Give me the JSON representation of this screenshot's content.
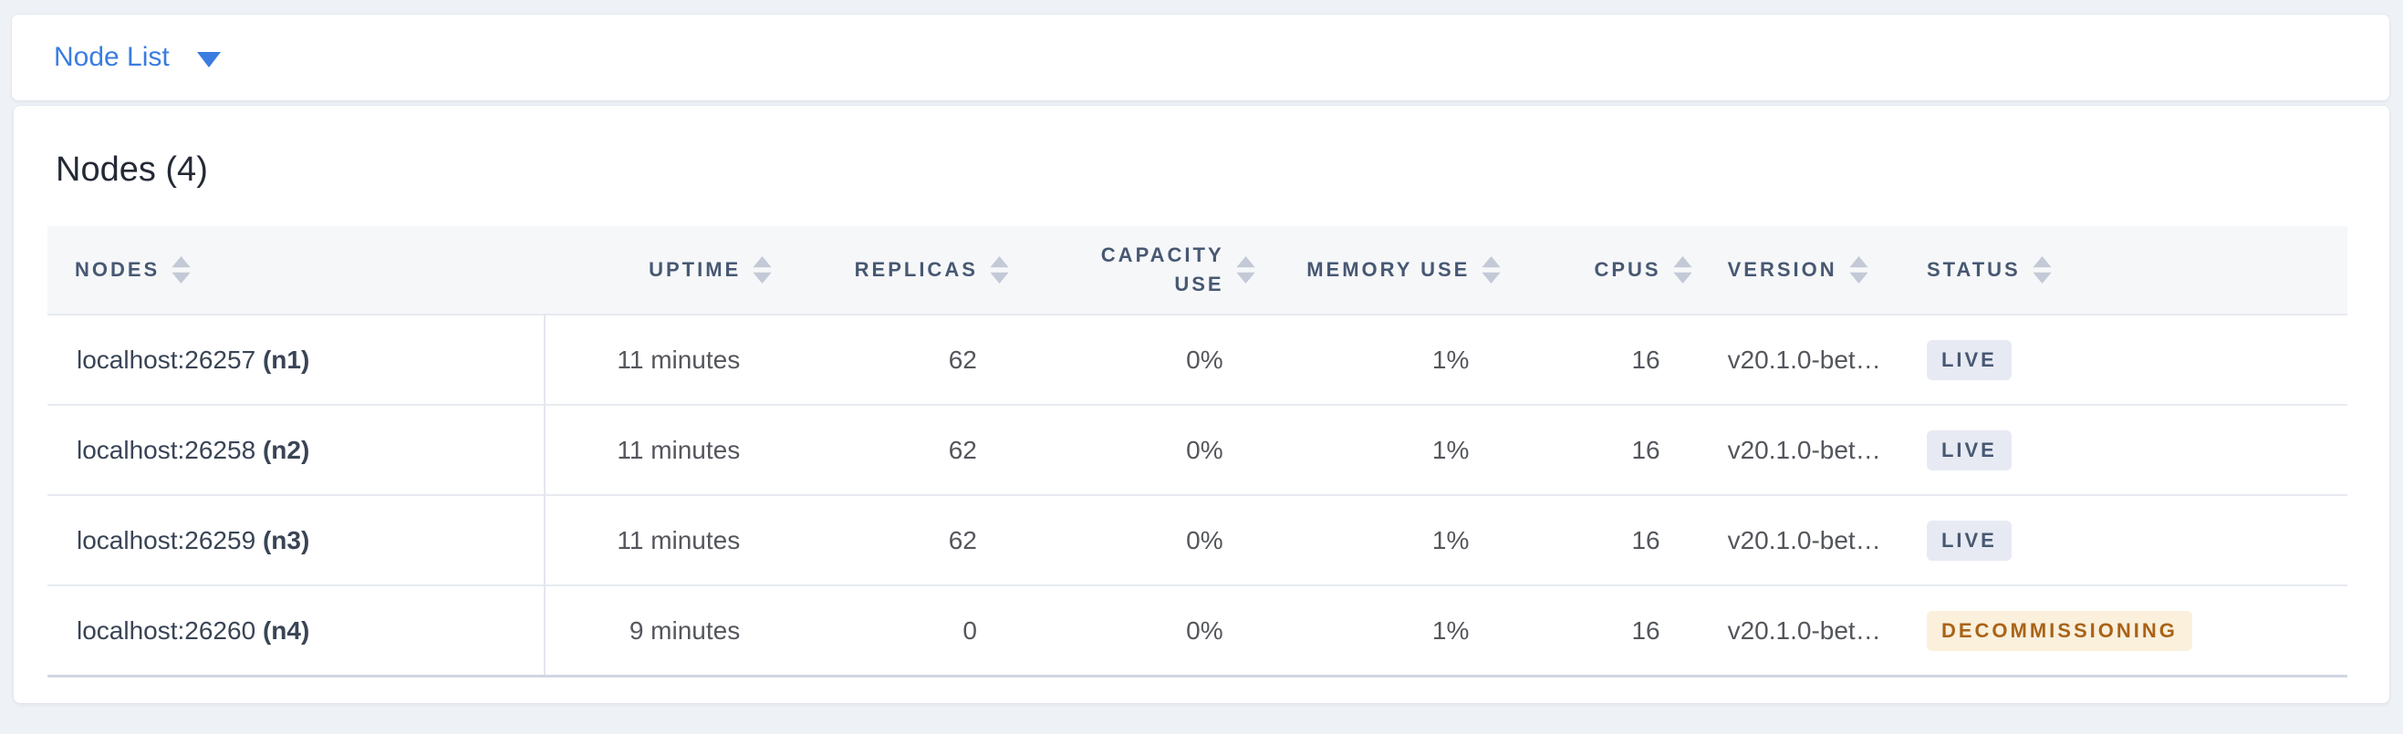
{
  "topbar": {
    "dropdown_label": "Node List"
  },
  "card": {
    "title": "Nodes (4)"
  },
  "table": {
    "columns": [
      {
        "key": "nodes",
        "label": "NODES",
        "align": "left",
        "width_pct": 21.6,
        "sortable": true
      },
      {
        "key": "uptime",
        "label": "UPTIME",
        "align": "right",
        "width_pct": 10.5,
        "sortable": true
      },
      {
        "key": "replicas",
        "label": "REPLICAS",
        "align": "right",
        "width_pct": 10.3,
        "sortable": true
      },
      {
        "key": "capacity_use",
        "label": "CAPACITY USE",
        "align": "right",
        "width_pct": 10.7,
        "wrap": true,
        "sortable": true
      },
      {
        "key": "memory_use",
        "label": "MEMORY USE",
        "align": "right",
        "width_pct": 10.7,
        "sortable": true
      },
      {
        "key": "cpus",
        "label": "CPUS",
        "align": "right",
        "width_pct": 8.3,
        "sortable": true
      },
      {
        "key": "version",
        "label": "VERSION",
        "align": "left",
        "width_pct": 8.9,
        "sortable": true
      },
      {
        "key": "status",
        "label": "STATUS",
        "align": "left",
        "width_pct": 19.0,
        "sortable": true
      }
    ],
    "rows": [
      {
        "address": "localhost:26257",
        "node_id": "(n1)",
        "uptime": "11 minutes",
        "replicas": "62",
        "capacity_use": "0%",
        "memory_use": "1%",
        "cpus": "16",
        "version": "v20.1.0-bet…",
        "status": {
          "label": "LIVE",
          "type": "live"
        }
      },
      {
        "address": "localhost:26258",
        "node_id": "(n2)",
        "uptime": "11 minutes",
        "replicas": "62",
        "capacity_use": "0%",
        "memory_use": "1%",
        "cpus": "16",
        "version": "v20.1.0-bet…",
        "status": {
          "label": "LIVE",
          "type": "live"
        }
      },
      {
        "address": "localhost:26259",
        "node_id": "(n3)",
        "uptime": "11 minutes",
        "replicas": "62",
        "capacity_use": "0%",
        "memory_use": "1%",
        "cpus": "16",
        "version": "v20.1.0-bet…",
        "status": {
          "label": "LIVE",
          "type": "live"
        }
      },
      {
        "address": "localhost:26260",
        "node_id": "(n4)",
        "uptime": "9 minutes",
        "replicas": "0",
        "capacity_use": "0%",
        "memory_use": "1%",
        "cpus": "16",
        "version": "v20.1.0-bet…",
        "status": {
          "label": "DECOMMISSIONING",
          "type": "decommissioning"
        }
      }
    ]
  },
  "colors": {
    "accent_blue": "#3a7ce0",
    "page_bg": "#eef1f6",
    "header_bg": "#f6f7f9",
    "header_text": "#475872",
    "body_text": "#54565c",
    "node_text": "#394455",
    "live_bg": "#e7eaf3",
    "live_text": "#475872",
    "decommissioning_bg": "#faf0dc",
    "decommissioning_text": "#a96318"
  }
}
